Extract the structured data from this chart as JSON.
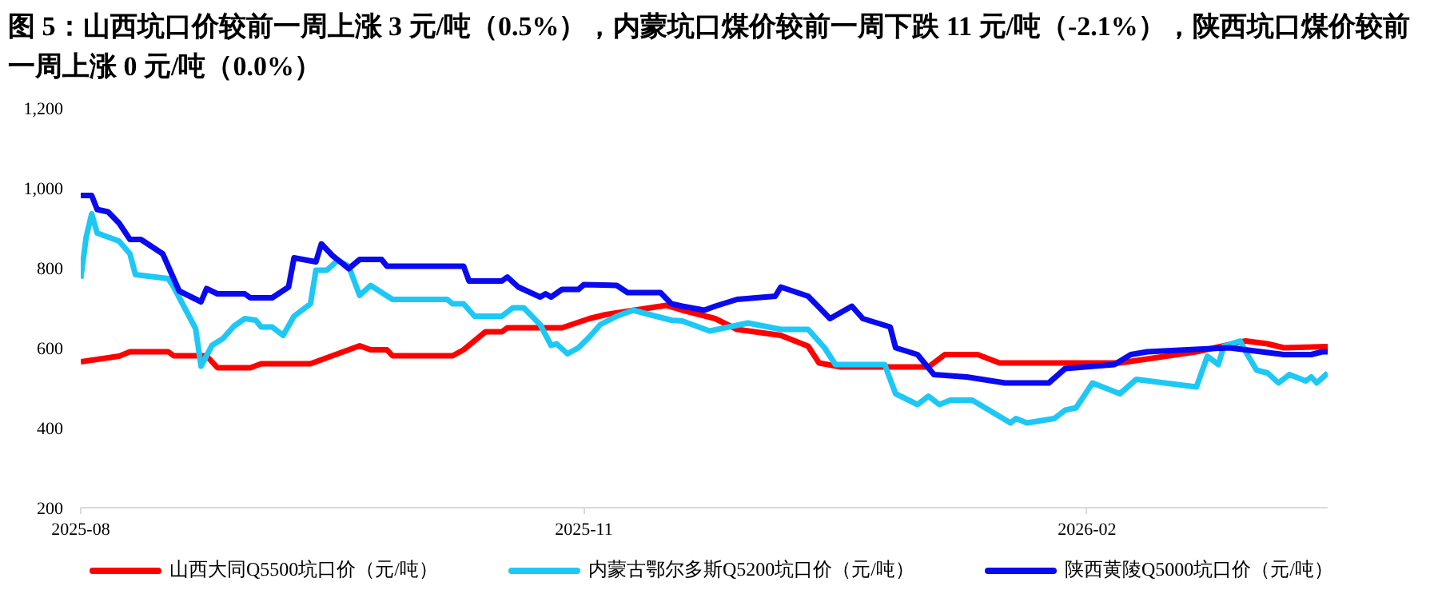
{
  "chart_data": {
    "type": "line",
    "title": "图 5：山西坑口价较前一周上涨 3 元/吨（0.5%），内蒙坑口煤价较前一周下跌 11 元/吨（-2.1%），陕西坑口煤价较前一周上涨 0 元/吨（0.0%）",
    "xlim": [
      "2025-08-01",
      "2026-03-17"
    ],
    "xticks": [
      "2025-08",
      "2025-11",
      "2026-02"
    ],
    "ylim": [
      200,
      1200
    ],
    "yticks": [
      200,
      400,
      600,
      800,
      {
        "value": 1000,
        "label": "1,000"
      },
      {
        "value": 1200,
        "label": "1,200"
      }
    ],
    "grid": false,
    "legend": "bottom",
    "marker": "none",
    "line_style": "solid",
    "series": [
      {
        "name": "山西大同Q5500坑口价（元/吨）",
        "color": "#ff0000",
        "x": [
          "2025-08-01",
          "2025-08-08",
          "2025-08-10",
          "2025-08-17",
          "2025-08-18",
          "2025-08-24",
          "2025-08-26",
          "2025-09-01",
          "2025-09-03",
          "2025-09-12",
          "2025-09-17",
          "2025-09-21",
          "2025-09-23",
          "2025-09-26",
          "2025-09-27",
          "2025-10-08",
          "2025-10-10",
          "2025-10-14",
          "2025-10-17",
          "2025-10-18",
          "2025-10-28",
          "2025-11-02",
          "2025-11-05",
          "2025-11-16",
          "2025-11-19",
          "2025-11-25",
          "2025-11-29",
          "2025-12-07",
          "2025-12-12",
          "2025-12-14",
          "2025-12-18",
          "2026-01-03",
          "2026-01-06",
          "2026-01-12",
          "2026-01-16",
          "2026-02-07",
          "2026-02-21",
          "2026-03-02",
          "2026-03-06",
          "2026-03-09",
          "2026-03-17"
        ],
        "values": [
          565,
          579,
          590,
          590,
          580,
          580,
          550,
          550,
          560,
          560,
          585,
          605,
          595,
          595,
          580,
          580,
          595,
          640,
          640,
          650,
          650,
          673,
          683,
          706,
          694,
          673,
          646,
          631,
          604,
          562,
          552,
          552,
          583,
          583,
          562,
          562,
          590,
          617,
          610,
          600,
          603
        ]
      },
      {
        "name": "内蒙古鄂尔多斯Q5200坑口价（元/吨）",
        "color": "#1ec8f5",
        "x": [
          "2025-08-01",
          "2025-08-02",
          "2025-08-03",
          "2025-08-04",
          "2025-08-08",
          "2025-08-10",
          "2025-08-11",
          "2025-08-17",
          "2025-08-18",
          "2025-08-22",
          "2025-08-23",
          "2025-08-25",
          "2025-08-27",
          "2025-08-29",
          "2025-08-31",
          "2025-09-02",
          "2025-09-03",
          "2025-09-05",
          "2025-09-07",
          "2025-09-09",
          "2025-09-12",
          "2025-09-13",
          "2025-09-15",
          "2025-09-17",
          "2025-09-19",
          "2025-09-21",
          "2025-09-23",
          "2025-09-27",
          "2025-10-07",
          "2025-10-08",
          "2025-10-10",
          "2025-10-12",
          "2025-10-17",
          "2025-10-19",
          "2025-10-21",
          "2025-10-24",
          "2025-10-26",
          "2025-10-27",
          "2025-10-29",
          "2025-10-31",
          "2025-11-02",
          "2025-11-04",
          "2025-11-07",
          "2025-11-10",
          "2025-11-13",
          "2025-11-17",
          "2025-11-19",
          "2025-11-24",
          "2025-12-01",
          "2025-12-07",
          "2025-12-12",
          "2025-12-15",
          "2025-12-17",
          "2025-12-26",
          "2025-12-28",
          "2026-01-01",
          "2026-01-03",
          "2026-01-05",
          "2026-01-07",
          "2026-01-11",
          "2026-01-18",
          "2026-01-19",
          "2026-01-21",
          "2026-01-26",
          "2026-01-28",
          "2026-01-30",
          "2026-02-02",
          "2026-02-07",
          "2026-02-10",
          "2026-02-21",
          "2026-02-23",
          "2026-02-25",
          "2026-02-26",
          "2026-03-01",
          "2026-03-02",
          "2026-03-04",
          "2026-03-06",
          "2026-03-08",
          "2026-03-10",
          "2026-03-13",
          "2026-03-14",
          "2026-03-15",
          "2026-03-17"
        ],
        "values": [
          773,
          877,
          935,
          887,
          867,
          835,
          783,
          773,
          752,
          648,
          554,
          606,
          623,
          654,
          673,
          669,
          652,
          652,
          631,
          679,
          710,
          794,
          794,
          819,
          804,
          731,
          756,
          721,
          721,
          710,
          710,
          679,
          679,
          700,
          700,
          658,
          606,
          610,
          585,
          600,
          627,
          658,
          679,
          694,
          683,
          669,
          667,
          642,
          662,
          646,
          646,
          600,
          558,
          558,
          485,
          458,
          479,
          458,
          469,
          469,
          412,
          423,
          412,
          423,
          444,
          450,
          512,
          485,
          521,
          502,
          579,
          558,
          604,
          617,
          590,
          544,
          537,
          512,
          533,
          517,
          527,
          512,
          537
        ]
      },
      {
        "name": "陕西黄陵Q5000坑口价（元/吨）",
        "color": "#0a0af0",
        "x": [
          "2025-08-01",
          "2025-08-03",
          "2025-08-04",
          "2025-08-06",
          "2025-08-08",
          "2025-08-10",
          "2025-08-12",
          "2025-08-16",
          "2025-08-19",
          "2025-08-23",
          "2025-08-24",
          "2025-08-26",
          "2025-08-31",
          "2025-09-01",
          "2025-09-05",
          "2025-09-08",
          "2025-09-09",
          "2025-09-13",
          "2025-09-14",
          "2025-09-16",
          "2025-09-19",
          "2025-09-21",
          "2025-09-25",
          "2025-09-26",
          "2025-10-10",
          "2025-10-11",
          "2025-10-17",
          "2025-10-18",
          "2025-10-20",
          "2025-10-24",
          "2025-10-25",
          "2025-10-26",
          "2025-10-28",
          "2025-10-31",
          "2025-11-01",
          "2025-11-07",
          "2025-11-09",
          "2025-11-15",
          "2025-11-17",
          "2025-11-19",
          "2025-11-23",
          "2025-11-25",
          "2025-11-29",
          "2025-12-06",
          "2025-12-07",
          "2025-12-12",
          "2025-12-16",
          "2025-12-20",
          "2025-12-22",
          "2025-12-27",
          "2025-12-28",
          "2026-01-01",
          "2026-01-04",
          "2026-01-10",
          "2026-01-17",
          "2026-01-25",
          "2026-01-28",
          "2026-02-06",
          "2026-02-09",
          "2026-02-12",
          "2026-02-27",
          "2026-03-09",
          "2026-03-14",
          "2026-03-16",
          "2026-03-17"
        ],
        "values": [
          981,
          981,
          946,
          940,
          912,
          871,
          871,
          835,
          742,
          715,
          748,
          735,
          735,
          725,
          725,
          752,
          825,
          815,
          860,
          831,
          798,
          821,
          821,
          804,
          804,
          767,
          767,
          777,
          752,
          727,
          735,
          727,
          746,
          746,
          758,
          756,
          738,
          738,
          710,
          704,
          694,
          704,
          721,
          729,
          752,
          729,
          673,
          704,
          673,
          652,
          600,
          583,
          533,
          527,
          512,
          512,
          548,
          558,
          583,
          590,
          600,
          583,
          583,
          590,
          590
        ]
      }
    ]
  }
}
